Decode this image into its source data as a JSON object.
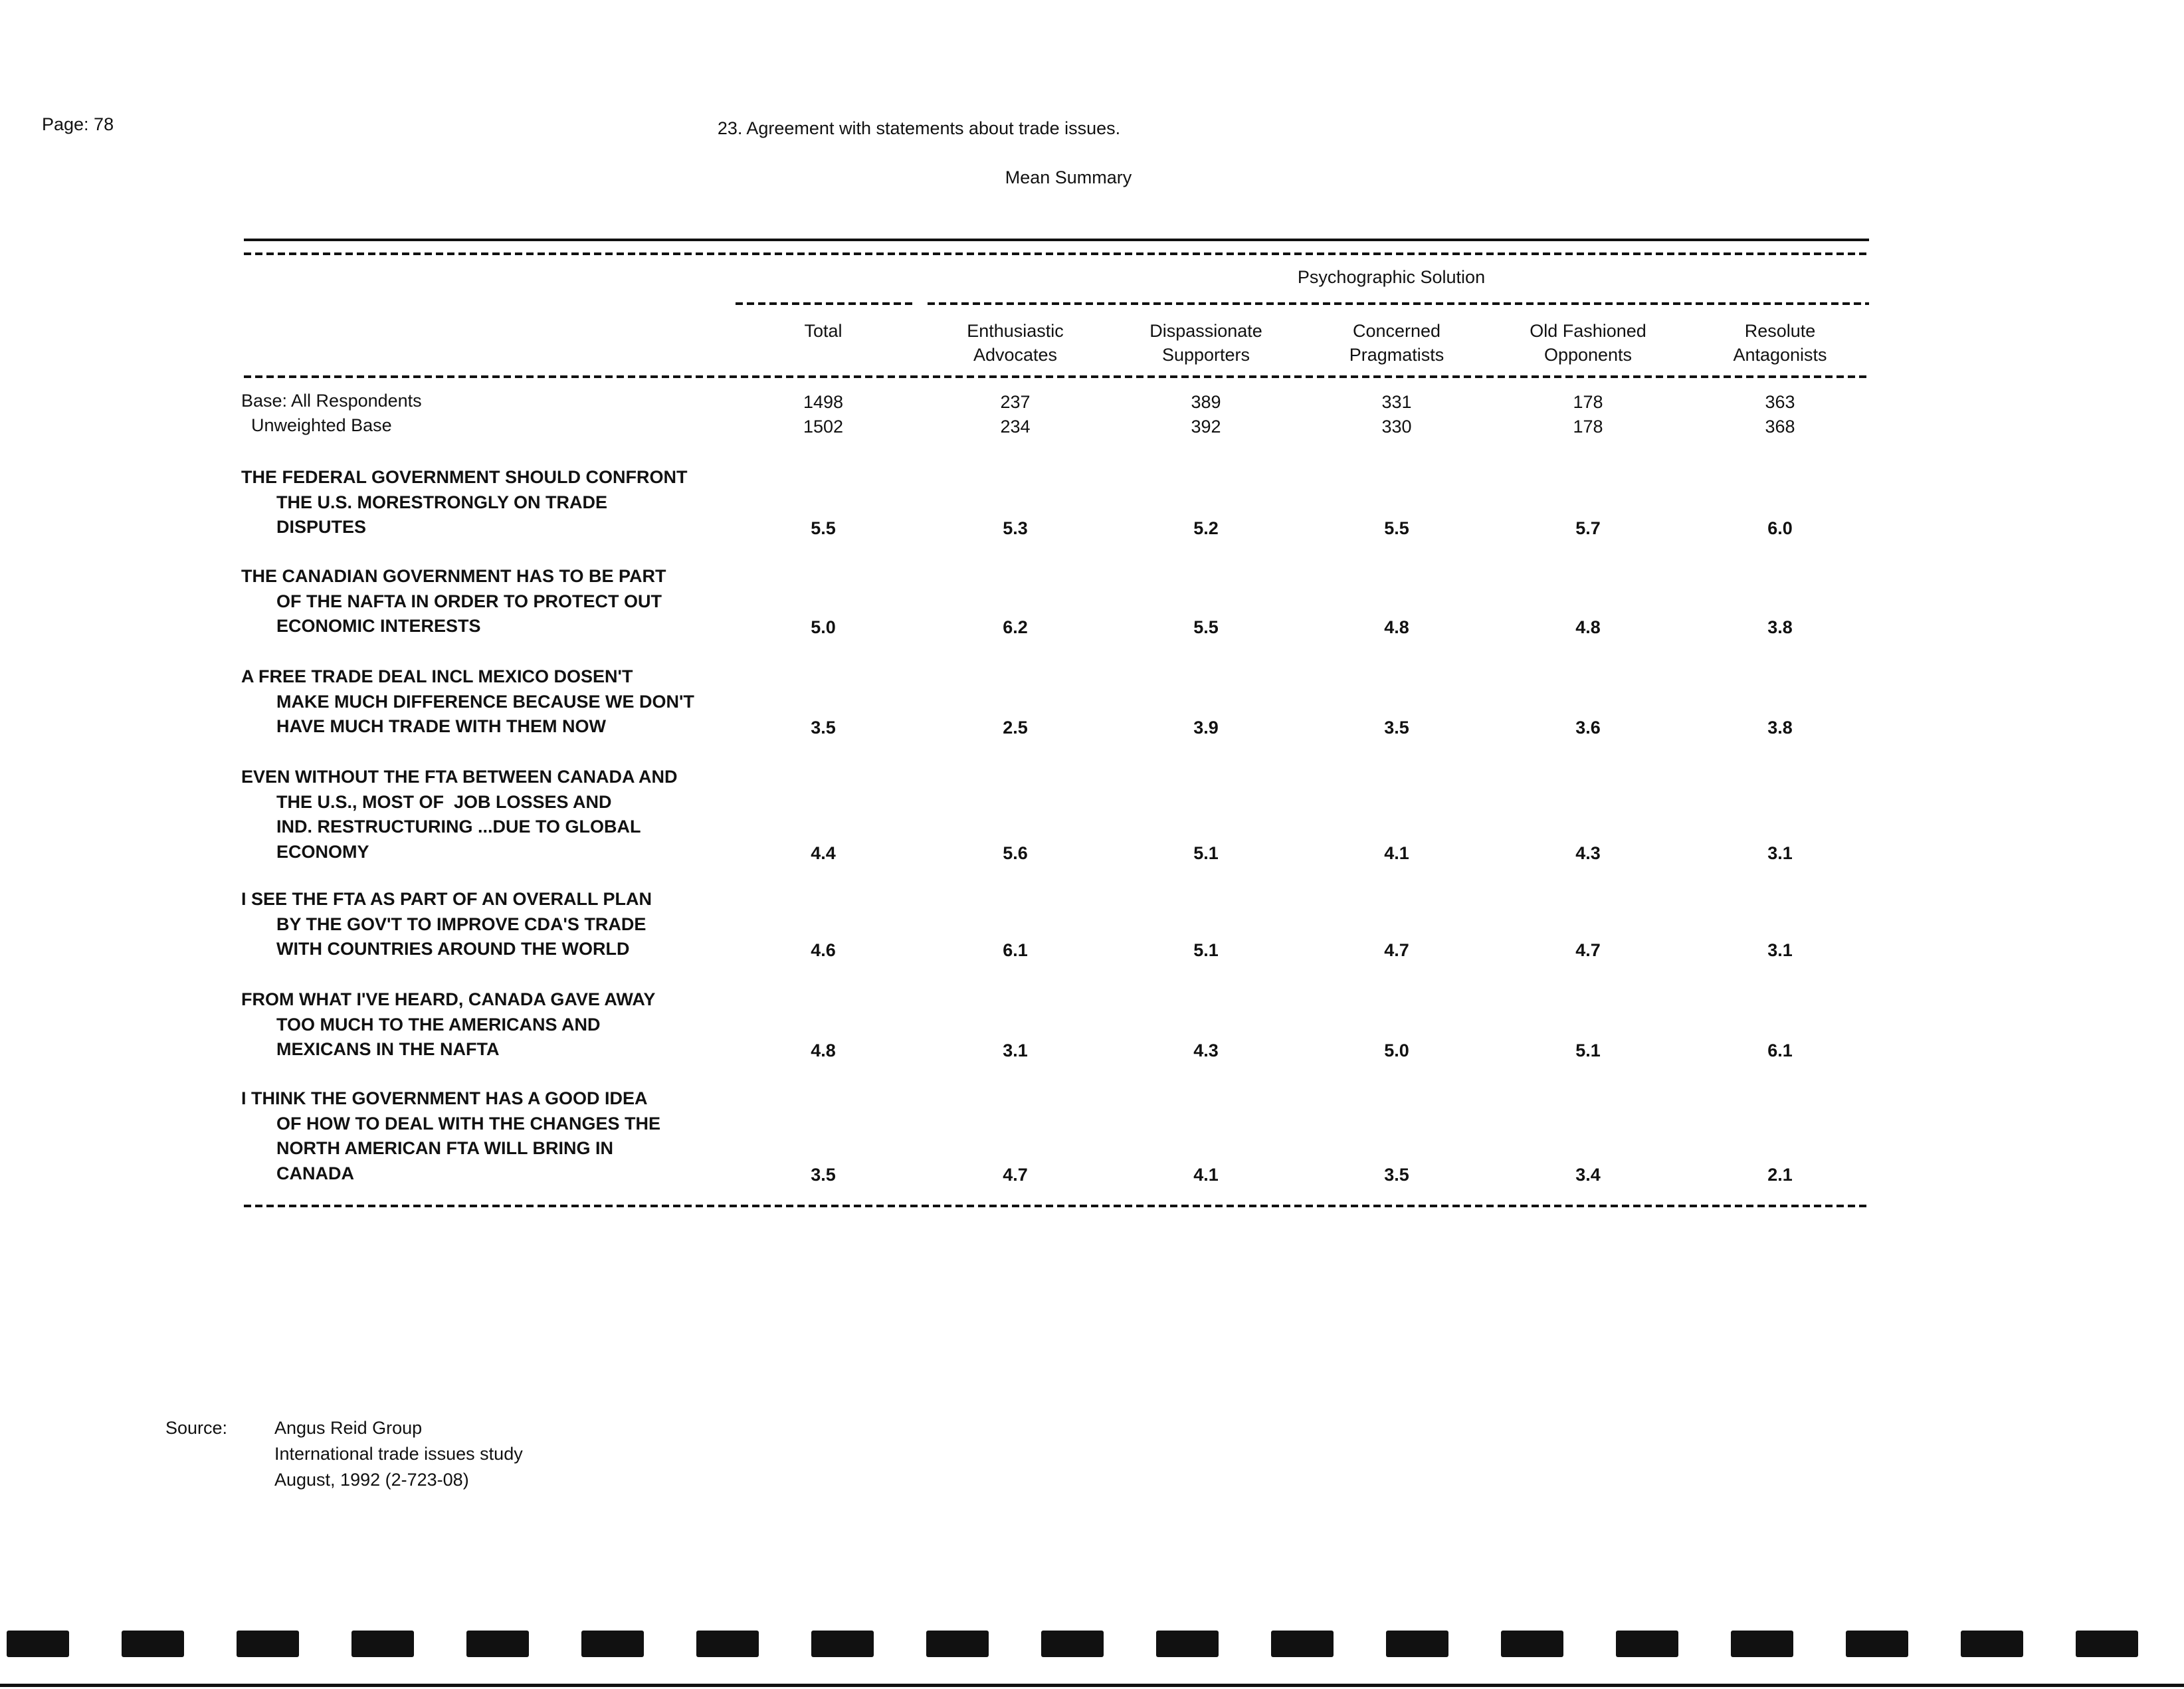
{
  "page_label": "Page: 78",
  "title": "23. Agreement with statements about trade issues.",
  "subtitle": "Mean Summary",
  "group_header": "Psychographic Solution",
  "columns": [
    {
      "line1": "Total",
      "line2": ""
    },
    {
      "line1": "Enthusiastic",
      "line2": "Advocates"
    },
    {
      "line1": "Dispassionate",
      "line2": "Supporters"
    },
    {
      "line1": "Concerned",
      "line2": "Pragmatists"
    },
    {
      "line1": "Old Fashioned",
      "line2": "Opponents"
    },
    {
      "line1": "Resolute",
      "line2": "Antagonists"
    }
  ],
  "bases": [
    {
      "label": "Base: All Respondents",
      "values": [
        "1498",
        "237",
        "389",
        "331",
        "178",
        "363"
      ]
    },
    {
      "label": "  Unweighted Base",
      "values": [
        "1502",
        "234",
        "392",
        "330",
        "178",
        "368"
      ]
    }
  ],
  "statements": [
    {
      "lines": [
        "THE FEDERAL GOVERNMENT SHOULD CONFRONT",
        "THE U.S. MORESTRONGLY ON TRADE",
        "DISPUTES"
      ],
      "values": [
        "5.5",
        "5.3",
        "5.2",
        "5.5",
        "5.7",
        "6.0"
      ]
    },
    {
      "lines": [
        "THE CANADIAN GOVERNMENT HAS TO BE PART",
        "OF THE NAFTA IN ORDER TO PROTECT OUT",
        "ECONOMIC INTERESTS"
      ],
      "values": [
        "5.0",
        "6.2",
        "5.5",
        "4.8",
        "4.8",
        "3.8"
      ]
    },
    {
      "lines": [
        "A FREE TRADE DEAL INCL MEXICO DOSEN'T",
        "MAKE MUCH DIFFERENCE BECAUSE WE DON'T",
        "HAVE MUCH TRADE WITH THEM NOW"
      ],
      "values": [
        "3.5",
        "2.5",
        "3.9",
        "3.5",
        "3.6",
        "3.8"
      ]
    },
    {
      "lines": [
        "EVEN WITHOUT THE FTA BETWEEN CANADA AND",
        "THE U.S., MOST OF  JOB LOSSES AND",
        "IND. RESTRUCTURING ...DUE TO GLOBAL",
        "ECONOMY"
      ],
      "values": [
        "4.4",
        "5.6",
        "5.1",
        "4.1",
        "4.3",
        "3.1"
      ]
    },
    {
      "lines": [
        "I SEE THE FTA AS PART OF AN OVERALL PLAN",
        "BY THE GOV'T TO IMPROVE CDA'S TRADE",
        "WITH COUNTRIES AROUND THE WORLD"
      ],
      "values": [
        "4.6",
        "6.1",
        "5.1",
        "4.7",
        "4.7",
        "3.1"
      ]
    },
    {
      "lines": [
        "FROM WHAT I'VE HEARD, CANADA GAVE AWAY",
        "TOO MUCH TO THE AMERICANS AND",
        "MEXICANS IN THE NAFTA"
      ],
      "values": [
        "4.8",
        "3.1",
        "4.3",
        "5.0",
        "5.1",
        "6.1"
      ]
    },
    {
      "lines": [
        "I THINK THE GOVERNMENT HAS A GOOD IDEA",
        "OF HOW TO DEAL WITH THE CHANGES THE",
        "NORTH AMERICAN FTA WILL BRING IN",
        "CANADA"
      ],
      "values": [
        "3.5",
        "4.7",
        "4.1",
        "3.5",
        "3.4",
        "2.1"
      ]
    }
  ],
  "source": {
    "label": "Source:",
    "lines": [
      "Angus Reid Group",
      "International trade issues study",
      "August, 1992 (2-723-08)"
    ]
  }
}
